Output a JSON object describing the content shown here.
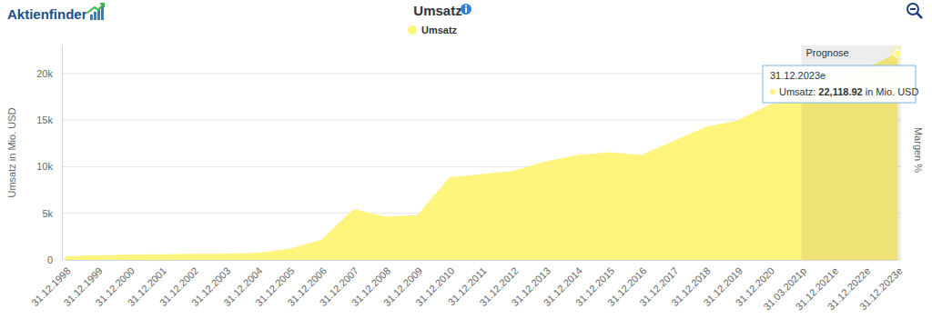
{
  "chart_data": {
    "type": "area",
    "title": "Umsatz",
    "logo": "Aktienfinder",
    "y_label": "Umsatz in Mio. USD",
    "y2_label": "Margen %",
    "categories": [
      "31.12.1998",
      "31.12.1999",
      "31.12.2000",
      "31.12.2001",
      "31.12.2002",
      "31.12.2003",
      "31.12.2004",
      "31.12.2005",
      "31.12.2006",
      "31.12.2007",
      "31.12.2008",
      "31.12.2009",
      "31.12.2010",
      "31.12.2011",
      "31.12.2012",
      "31.12.2013",
      "31.12.2014",
      "31.12.2015",
      "31.12.2016",
      "31.12.2017",
      "31.12.2018",
      "31.12.2019",
      "31.12.2020",
      "31.03.2021p",
      "31.12.2021e",
      "31.12.2022e",
      "31.12.2023e"
    ],
    "series": [
      {
        "name": "Umsatz",
        "color": "#fff47c",
        "values": [
          350,
          450,
          520,
          560,
          600,
          620,
          700,
          1150,
          2100,
          5400,
          4600,
          4750,
          8800,
          9150,
          9500,
          10500,
          11200,
          11500,
          11200,
          12700,
          14200,
          14900,
          16600,
          17500,
          19000,
          20500,
          22118.92
        ]
      }
    ],
    "ylim": [
      0,
      23000
    ],
    "yticks": [
      0,
      {
        "value": 5000,
        "label": "5k"
      },
      {
        "value": 10000,
        "label": "10k"
      },
      {
        "value": 15000,
        "label": "15k"
      },
      {
        "value": 20000,
        "label": "20k"
      }
    ],
    "grid": true,
    "legend": "top",
    "forecast": {
      "label": "Prognose",
      "from": "31.03.2021p"
    },
    "tooltip": {
      "title": "31.12.2023e",
      "name": "Umsatz:",
      "value": "22,118.92",
      "unit": "in Mio. USD"
    }
  }
}
